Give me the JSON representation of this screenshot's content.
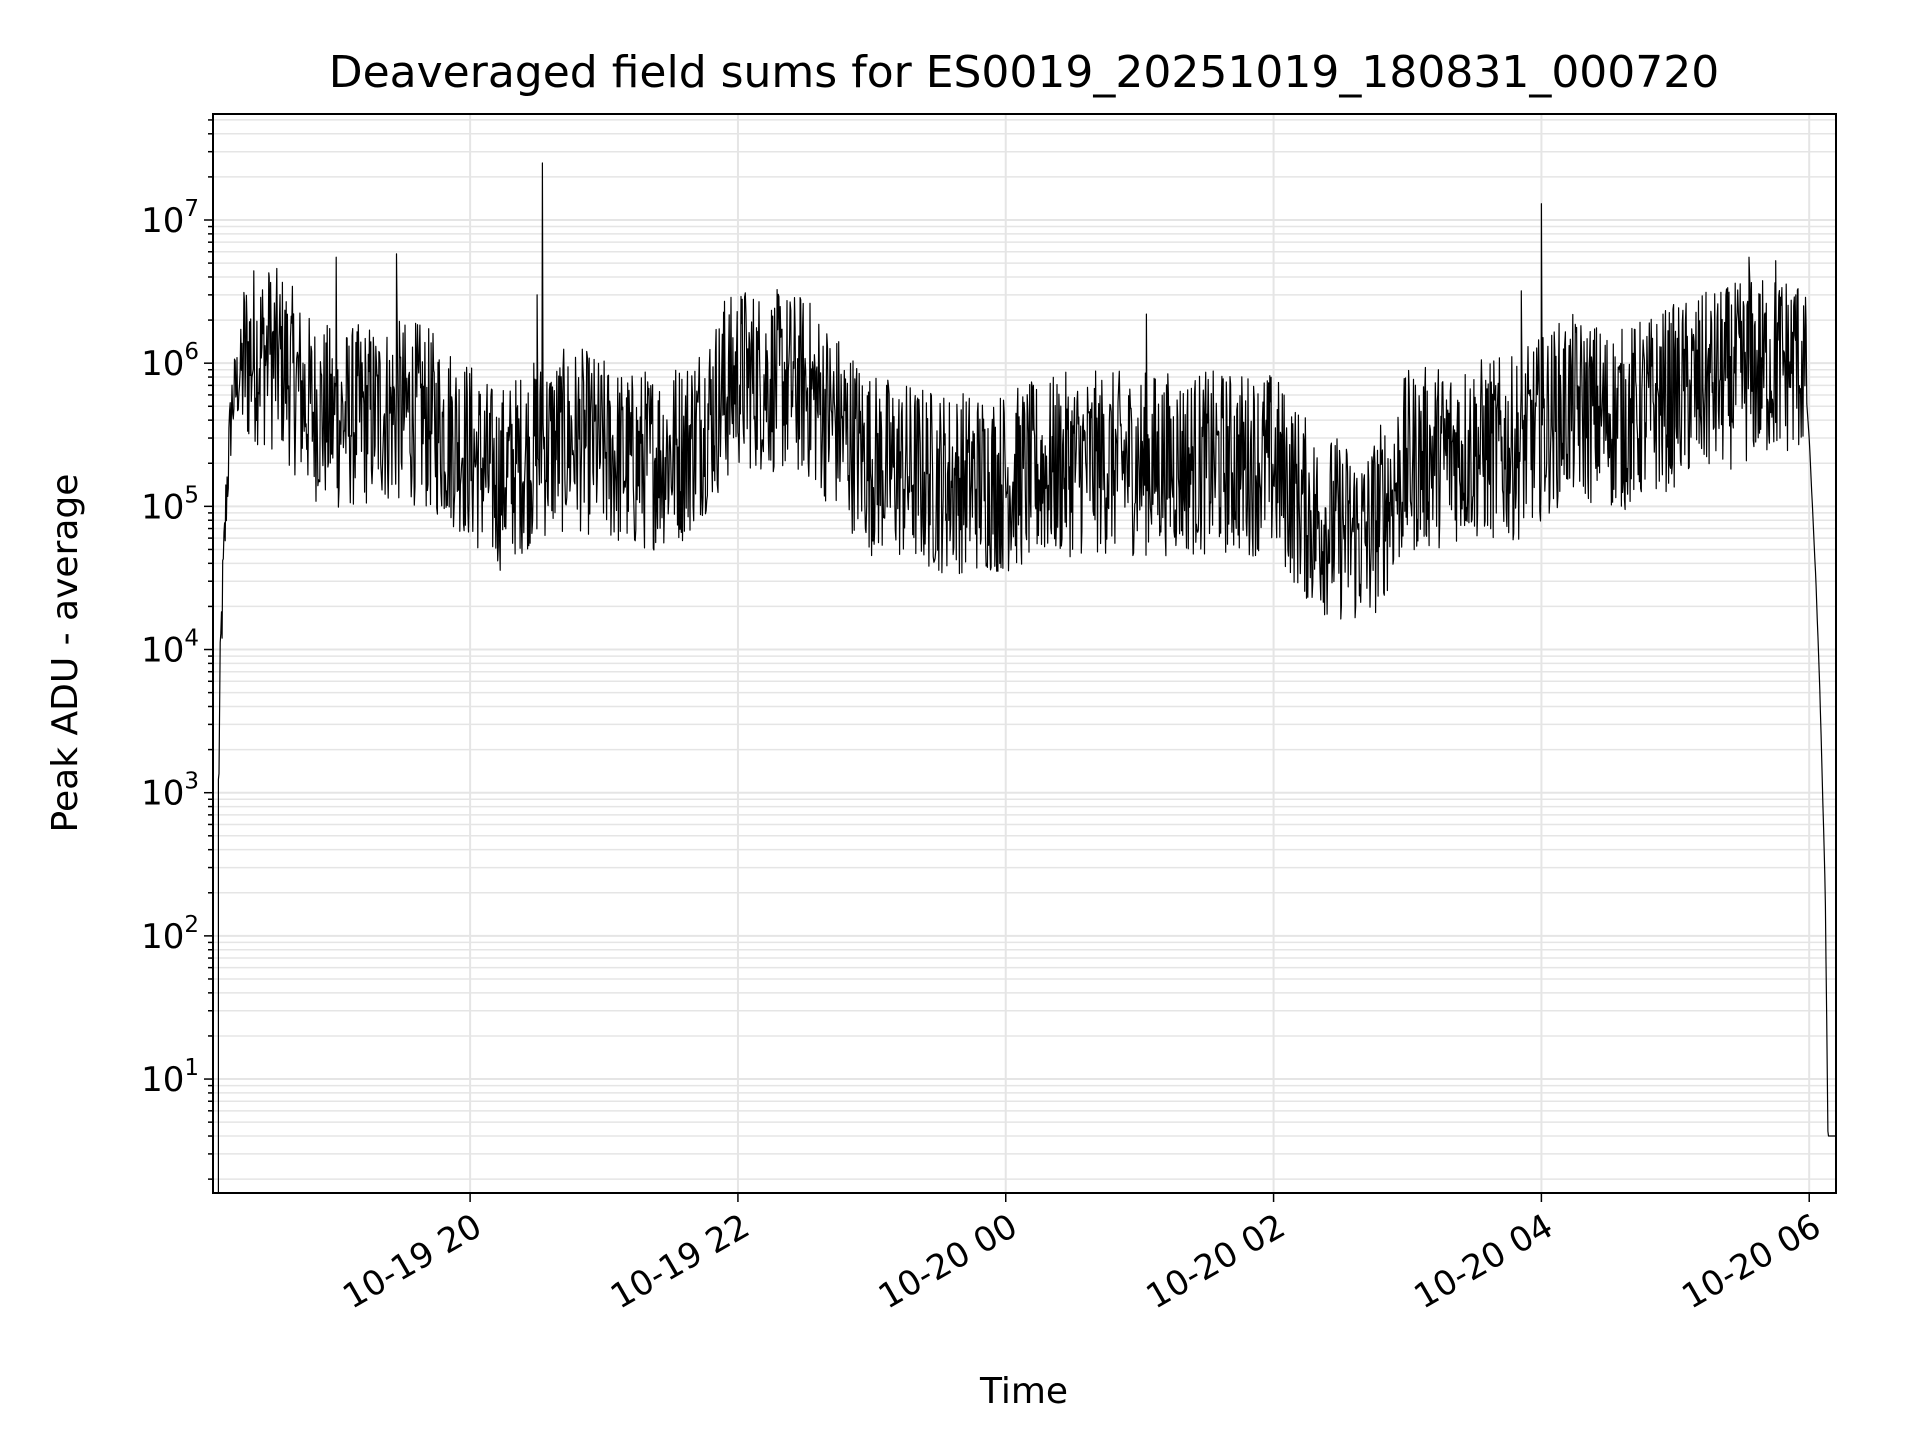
{
  "chart_data": {
    "type": "line",
    "title": "Deaveraged field sums for ES0019_20251019_180831_000720",
    "xlabel": "Time",
    "ylabel": "Peak ADU - average",
    "yscale": "log",
    "ylim": [
      1.6,
      55000000
    ],
    "xlim_hours": [
      18.08,
      30.2
    ],
    "x_ticks": [
      {
        "value": 20,
        "label": "10-19 20"
      },
      {
        "value": 22,
        "label": "10-19 22"
      },
      {
        "value": 24,
        "label": "10-20 00"
      },
      {
        "value": 26,
        "label": "10-20 02"
      },
      {
        "value": 28,
        "label": "10-20 04"
      },
      {
        "value": 30,
        "label": "10-20 06"
      }
    ],
    "y_ticks": [
      {
        "value": 10,
        "base": "10",
        "exp": "1"
      },
      {
        "value": 100,
        "base": "10",
        "exp": "2"
      },
      {
        "value": 1000,
        "base": "10",
        "exp": "3"
      },
      {
        "value": 10000,
        "base": "10",
        "exp": "4"
      },
      {
        "value": 100000,
        "base": "10",
        "exp": "5"
      },
      {
        "value": 1000000,
        "base": "10",
        "exp": "6"
      },
      {
        "value": 10000000,
        "base": "10",
        "exp": "7"
      }
    ],
    "grid": true,
    "line_color": "#000000",
    "grid_color": "#e5e5e5",
    "series": [
      {
        "name": "Peak ADU - average",
        "baseline_envelope": {
          "x": [
            18.12,
            18.14,
            18.18,
            18.22,
            18.3,
            18.4,
            18.6,
            18.8,
            19.0,
            19.3,
            19.6,
            19.9,
            20.2,
            20.5,
            20.8,
            21.2,
            21.6,
            22.0,
            22.5,
            23.0,
            23.5,
            24.0,
            24.5,
            25.0,
            25.5,
            26.0,
            26.3,
            26.7,
            27.0,
            27.4,
            27.8,
            28.2,
            28.6,
            29.0,
            29.4,
            29.8,
            29.96,
            30.0,
            30.05,
            30.08,
            30.1,
            30.12,
            30.14,
            30.2
          ],
          "y": [
            1000,
            12000,
            120000,
            500000,
            1000000,
            1200000,
            1000000,
            500000,
            400000,
            450000,
            450000,
            300000,
            150000,
            250000,
            300000,
            200000,
            250000,
            800000,
            700000,
            200000,
            150000,
            150000,
            200000,
            200000,
            200000,
            200000,
            80000,
            60000,
            200000,
            250000,
            250000,
            500000,
            400000,
            600000,
            800000,
            1000000,
            1000000,
            300000,
            30000,
            5000,
            1000,
            200,
            4,
            4
          ]
        },
        "noise_span_decades": 1.3,
        "spikes": [
          {
            "x": 18.5,
            "y": 4000000
          },
          {
            "x": 19.0,
            "y": 5500000
          },
          {
            "x": 19.45,
            "y": 5800000
          },
          {
            "x": 20.5,
            "y": 3000000
          },
          {
            "x": 20.54,
            "y": 25000000
          },
          {
            "x": 21.9,
            "y": 2700000
          },
          {
            "x": 22.05,
            "y": 2900000
          },
          {
            "x": 25.05,
            "y": 2200000
          },
          {
            "x": 27.85,
            "y": 3200000
          },
          {
            "x": 28.0,
            "y": 13000000
          },
          {
            "x": 29.55,
            "y": 5500000
          },
          {
            "x": 29.75,
            "y": 5200000
          },
          {
            "x": 29.9,
            "y": 3000000
          }
        ]
      }
    ]
  }
}
